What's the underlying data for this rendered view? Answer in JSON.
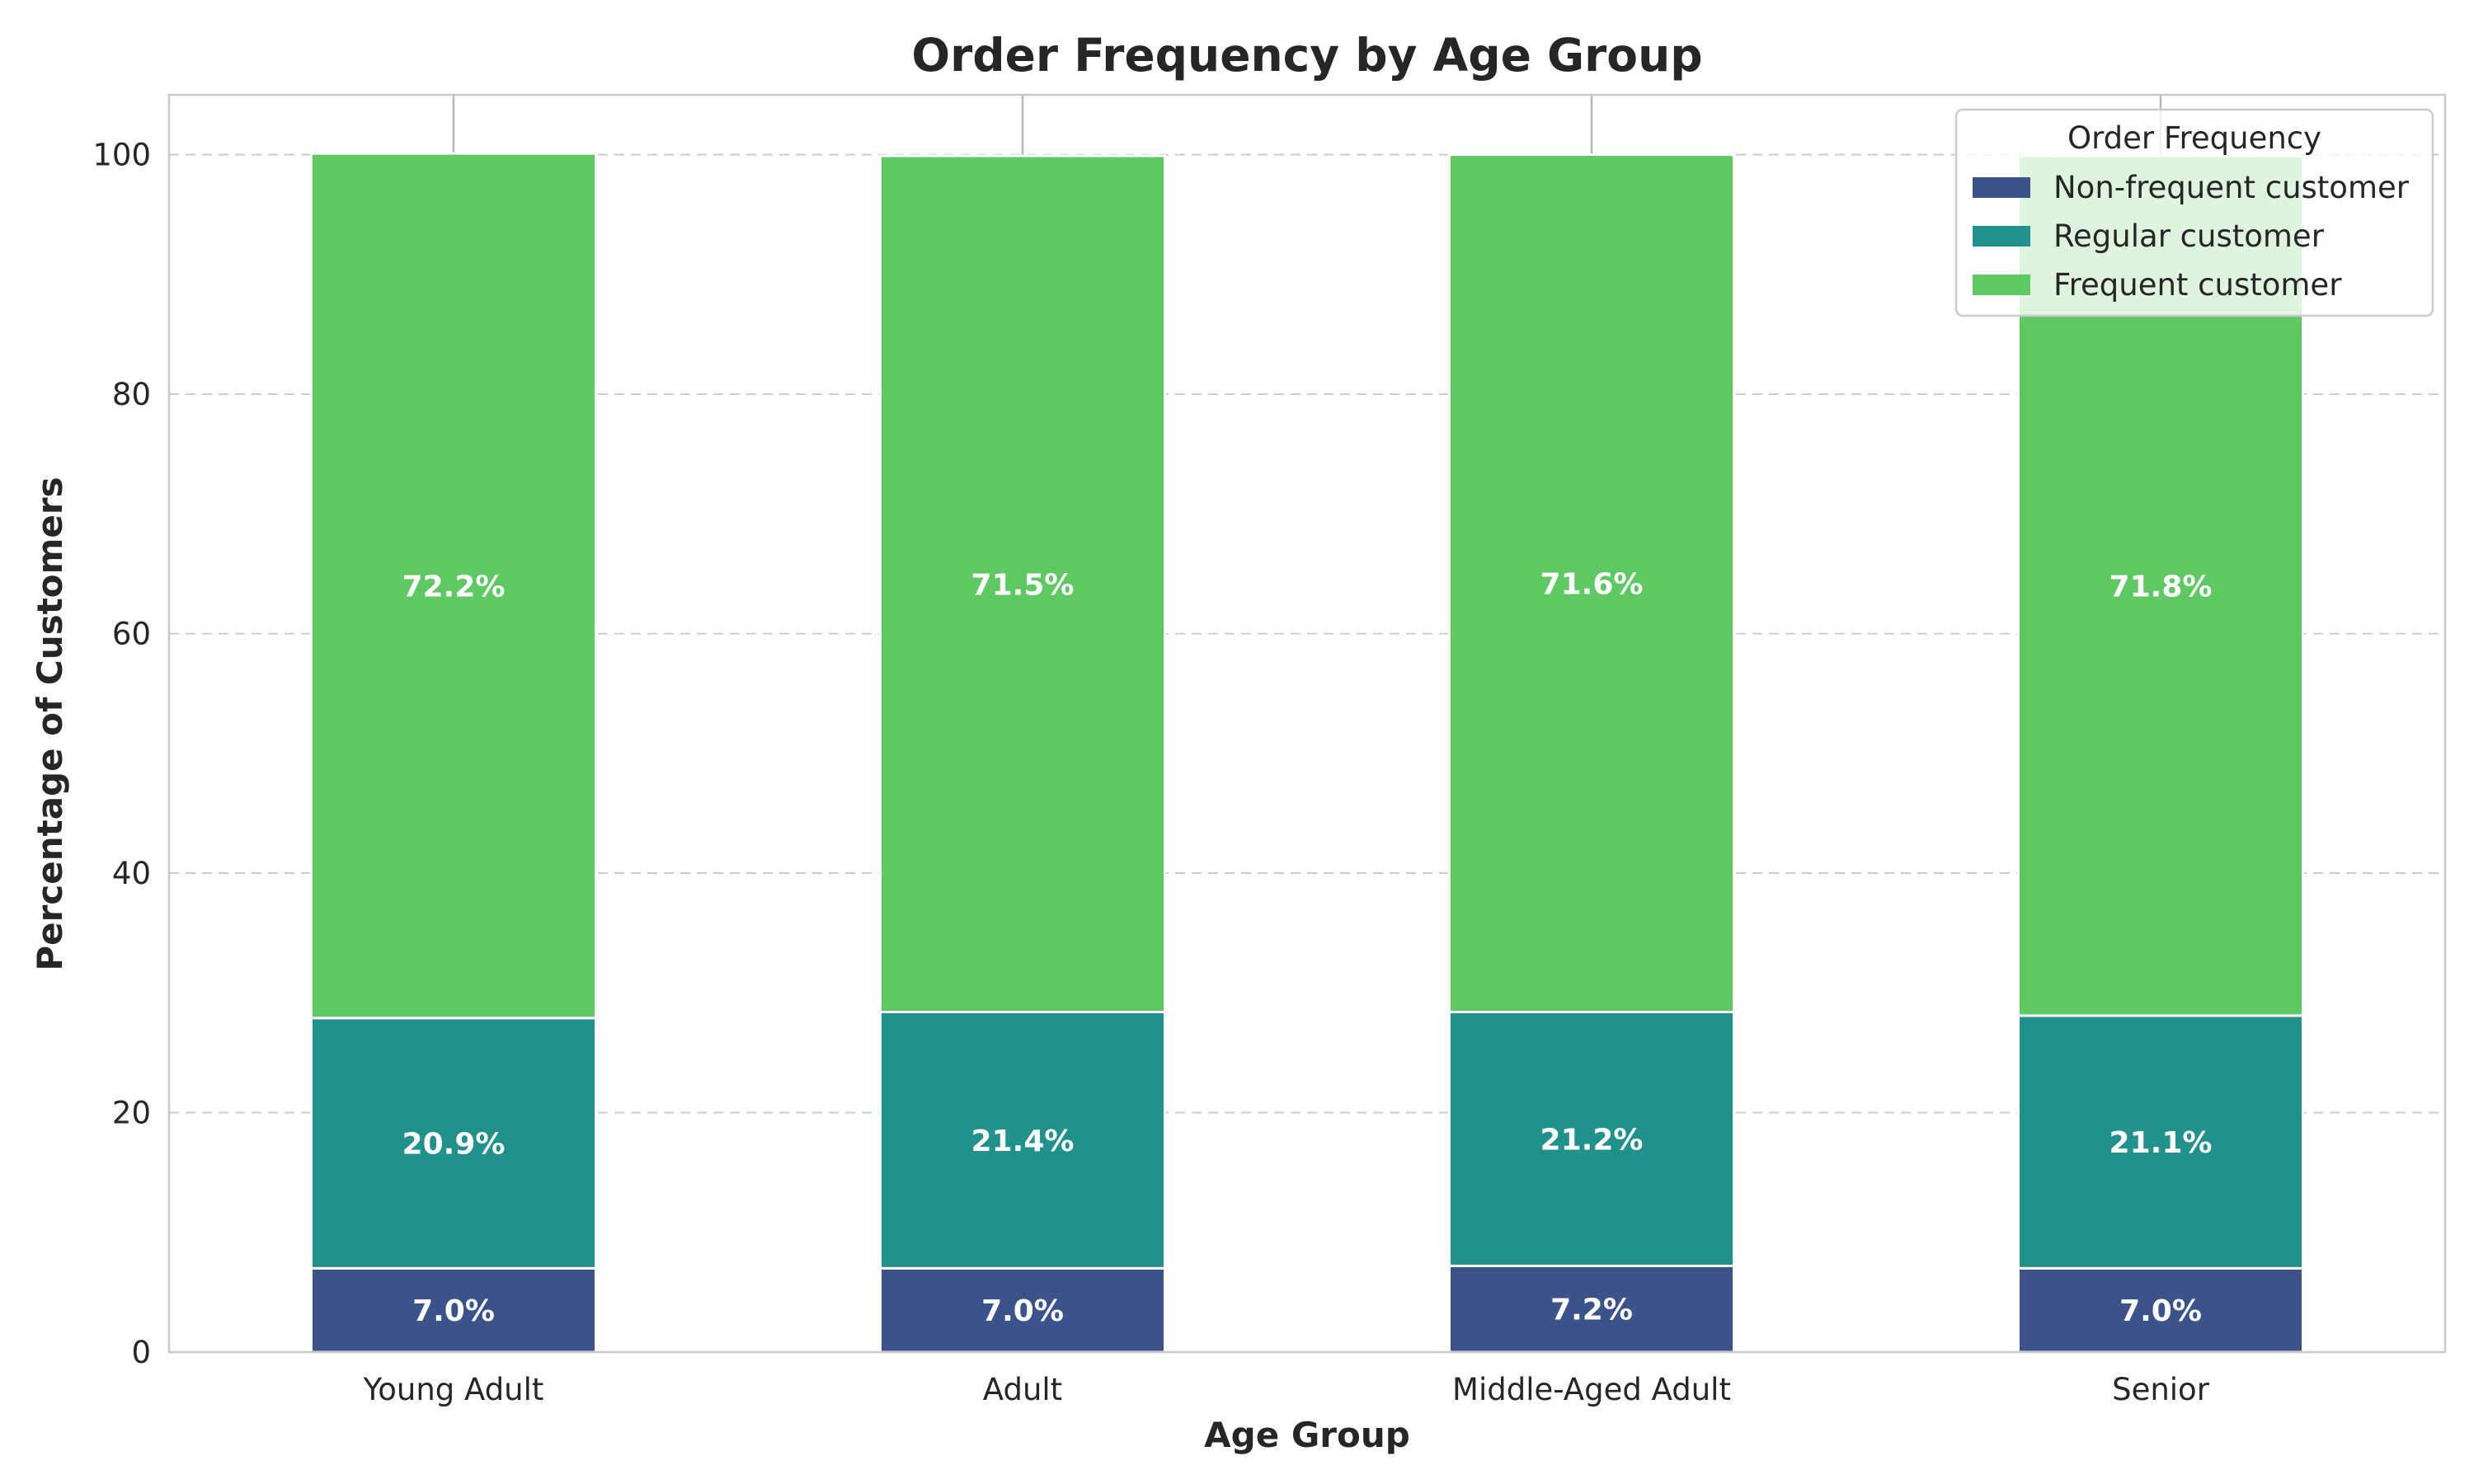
{
  "chart_data": {
    "type": "bar",
    "stacked": true,
    "title": "Order Frequency by Age Group",
    "xlabel": "Age Group",
    "ylabel": "Percentage of Customers",
    "ylim": [
      0,
      105
    ],
    "yticks": [
      "0",
      "20",
      "40",
      "60",
      "80",
      "100"
    ],
    "grid": true,
    "categories": [
      "Young Adult",
      "Adult",
      "Middle-Aged Adult",
      "Senior"
    ],
    "series": [
      {
        "name": "Non-frequent customer",
        "color": "#3b528b",
        "values": [
          7.0,
          7.0,
          7.2,
          7.0
        ],
        "labels": [
          "7.0%",
          "7.0%",
          "7.2%",
          "7.0%"
        ]
      },
      {
        "name": "Regular customer",
        "color": "#21918c",
        "values": [
          20.9,
          21.4,
          21.2,
          21.1
        ],
        "labels": [
          "20.9%",
          "21.4%",
          "21.2%",
          "21.1%"
        ]
      },
      {
        "name": "Frequent customer",
        "color": "#5ec962",
        "values": [
          72.2,
          71.5,
          71.6,
          71.8
        ],
        "labels": [
          "72.2%",
          "71.5%",
          "71.6%",
          "71.8%"
        ]
      }
    ],
    "legend": {
      "title": "Order Frequency",
      "placement": "top-right"
    }
  }
}
